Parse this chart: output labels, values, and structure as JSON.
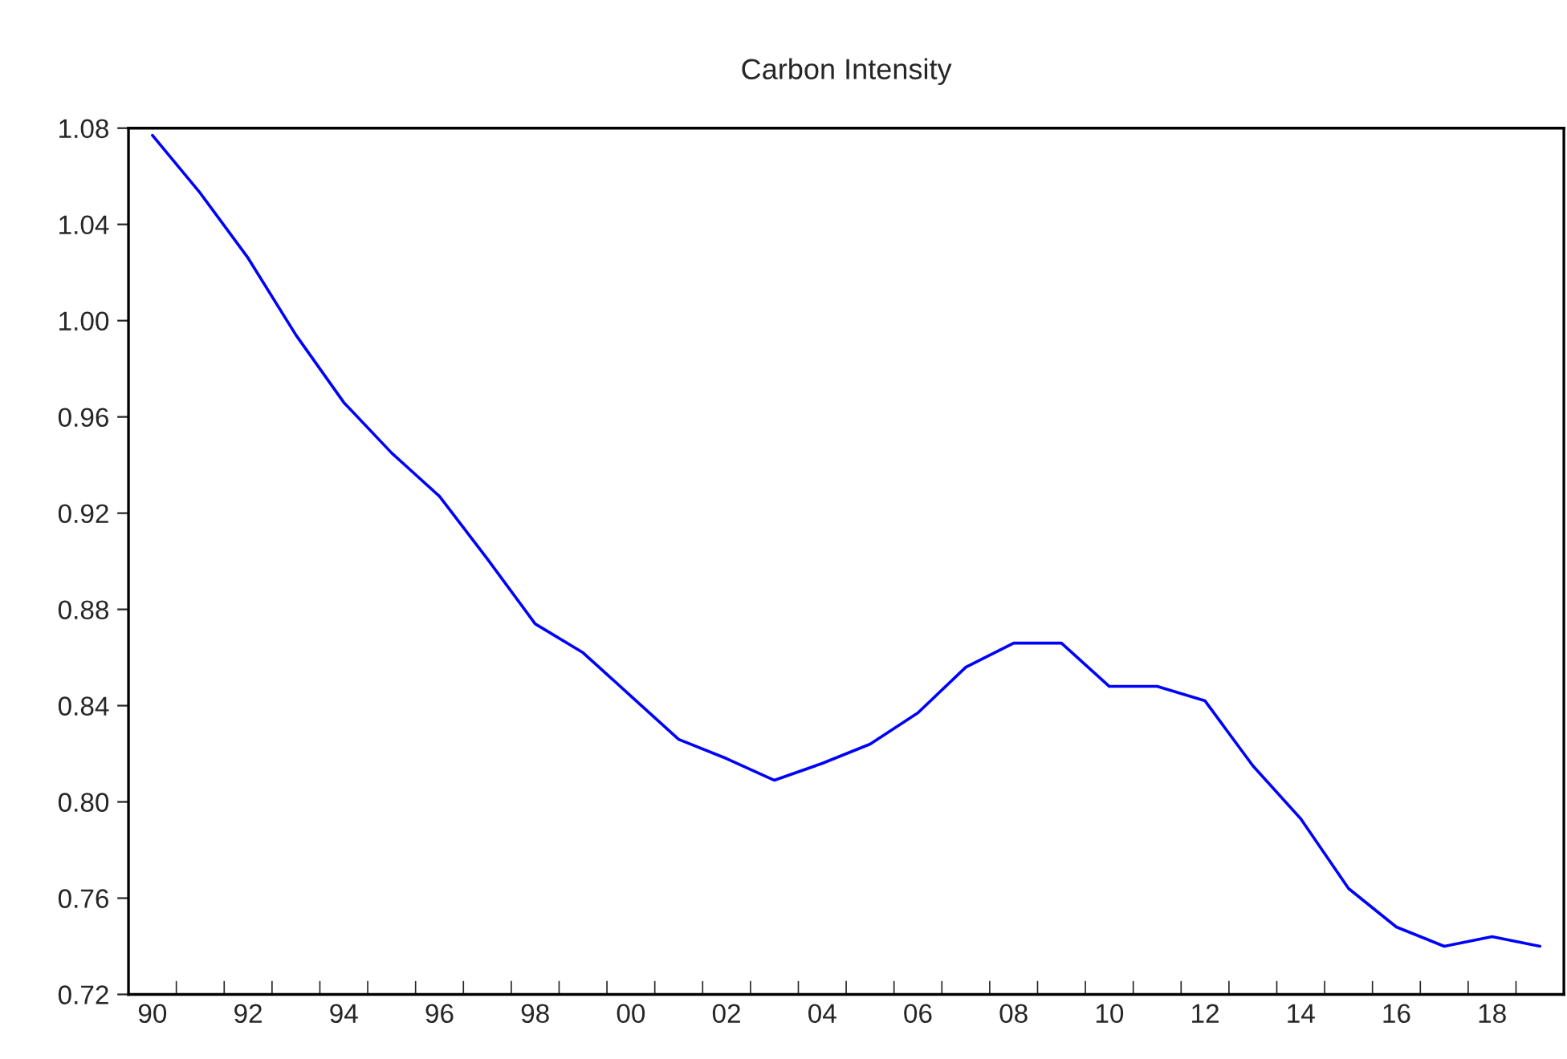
{
  "chart_data": {
    "type": "line",
    "title": "Carbon Intensity",
    "categories": [
      "90",
      null,
      "92",
      null,
      "94",
      null,
      "96",
      null,
      "98",
      null,
      "00",
      null,
      "02",
      null,
      "04",
      null,
      "06",
      null,
      "08",
      null,
      "10",
      null,
      "12",
      null,
      "14",
      null,
      "16",
      null,
      "18",
      null
    ],
    "series": [
      {
        "color": "#0000ff",
        "values": [
          1.077,
          1.053,
          1.026,
          0.994,
          0.966,
          0.945,
          0.927,
          0.901,
          0.874,
          0.862,
          0.844,
          0.826,
          0.818,
          0.809,
          0.816,
          0.824,
          0.837,
          0.856,
          0.866,
          0.866,
          0.848,
          0.848,
          0.842,
          0.815,
          0.793,
          0.764,
          0.748,
          0.74,
          0.744,
          0.74
        ]
      }
    ],
    "ylim": [
      0.72,
      1.08
    ],
    "yticks": [
      0.72,
      0.76,
      {
        "value": 0.8,
        "label": "0.80"
      },
      0.84,
      0.88,
      0.92,
      0.96,
      {
        "value": 1.0,
        "label": "1.00"
      },
      1.04,
      1.08
    ],
    "grid": false,
    "marker": "none",
    "line_style": "solid"
  }
}
